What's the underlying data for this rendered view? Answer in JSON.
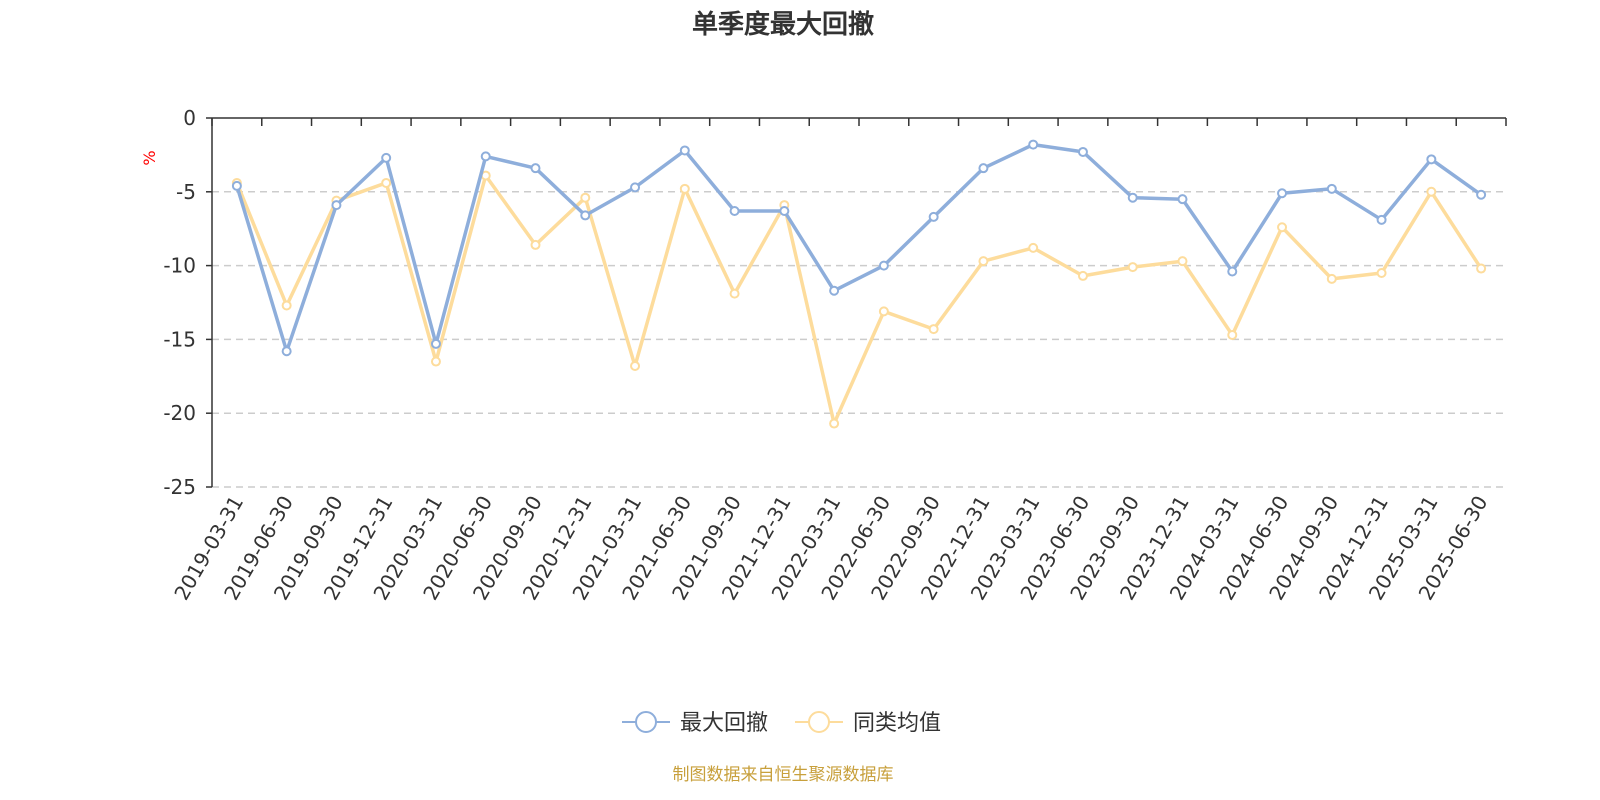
{
  "chart_data": {
    "type": "line",
    "title": "单季度最大回撤",
    "ylabel": "%",
    "ylim": [
      -25,
      0
    ],
    "yticks": [
      0,
      -5,
      -10,
      -15,
      -20,
      -25
    ],
    "grid": true,
    "legend_position": "bottom",
    "categories": [
      "2019-03-31",
      "2019-06-30",
      "2019-09-30",
      "2019-12-31",
      "2020-03-31",
      "2020-06-30",
      "2020-09-30",
      "2020-12-31",
      "2021-03-31",
      "2021-06-30",
      "2021-09-30",
      "2021-12-31",
      "2022-03-31",
      "2022-06-30",
      "2022-09-30",
      "2022-12-31",
      "2023-03-31",
      "2023-06-30",
      "2023-09-30",
      "2023-12-31",
      "2024-03-31",
      "2024-06-30",
      "2024-09-30",
      "2024-12-31",
      "2025-03-31",
      "2025-06-30"
    ],
    "series": [
      {
        "name": "最大回撤",
        "color": "#8eaedb",
        "values": [
          -4.6,
          -15.8,
          -5.9,
          -2.7,
          -15.3,
          -2.6,
          -3.4,
          -6.6,
          -4.7,
          -2.2,
          -6.3,
          -6.3,
          -11.7,
          -10.0,
          -6.7,
          -3.4,
          -1.8,
          -2.3,
          -5.4,
          -5.5,
          -10.4,
          -5.1,
          -4.8,
          -6.9,
          -2.8,
          -5.2
        ]
      },
      {
        "name": "同类均值",
        "color": "#fddc9c",
        "values": [
          -4.4,
          -12.7,
          -5.6,
          -4.4,
          -16.5,
          -3.9,
          -8.6,
          -5.4,
          -16.8,
          -4.8,
          -11.9,
          -5.9,
          -20.7,
          -13.1,
          -14.3,
          -9.7,
          -8.8,
          -10.7,
          -10.1,
          -9.7,
          -14.7,
          -7.4,
          -10.9,
          -10.5,
          -5.0,
          -10.2
        ]
      }
    ]
  },
  "footer": {
    "source": "制图数据来自恒生聚源数据库"
  }
}
